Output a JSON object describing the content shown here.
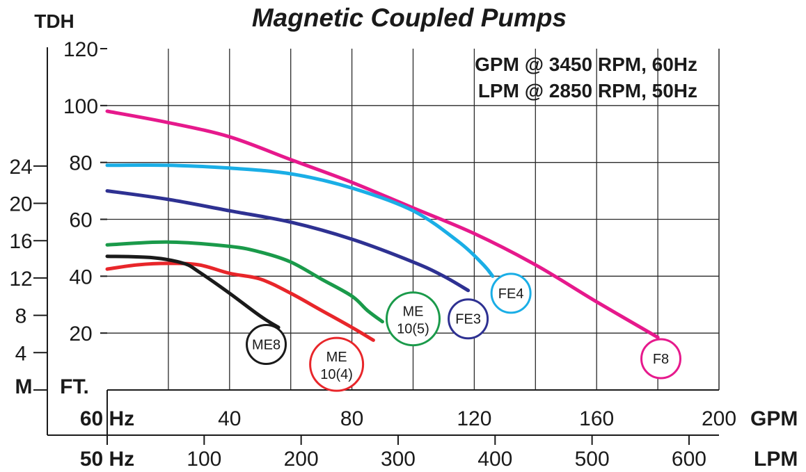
{
  "chart_data": {
    "type": "line",
    "title": "Magnetic Coupled Pumps",
    "subtitle_lines": [
      "GPM @ 3450 RPM, 60Hz",
      "LPM @ 2850 RPM, 50Hz"
    ],
    "y_axis_label": "TDH",
    "y_left_unit": "M",
    "y_right_unit": "FT.",
    "x_primary_label": "60 Hz",
    "x_primary_unit": "GPM",
    "x_secondary_label": "50 Hz",
    "x_secondary_unit": "LPM",
    "xlim": [
      0,
      200
    ],
    "ylim": [
      0,
      120
    ],
    "x_ticks": [
      40,
      80,
      120,
      160,
      200
    ],
    "x_grid": [
      20,
      40,
      60,
      80,
      100,
      120,
      140,
      160,
      180,
      200
    ],
    "y_ticks_ft": [
      20,
      40,
      60,
      80,
      100,
      120
    ],
    "y_grid_ft": [
      20,
      40,
      60,
      80,
      100
    ],
    "y_ticks_m": [
      4,
      8,
      12,
      16,
      20,
      24
    ],
    "x_ticks_lpm": [
      100,
      200,
      300,
      400,
      500,
      600
    ],
    "grid": true,
    "series": [
      {
        "name": "F8",
        "color": "#e6198c",
        "points": [
          [
            0,
            98
          ],
          [
            20,
            94
          ],
          [
            40,
            89
          ],
          [
            60,
            81
          ],
          [
            80,
            73
          ],
          [
            100,
            64
          ],
          [
            120,
            55
          ],
          [
            140,
            44
          ],
          [
            160,
            31
          ],
          [
            180,
            18.5
          ]
        ],
        "label_at": [
          181,
          11
        ]
      },
      {
        "name": "FE4",
        "color": "#1aaee6",
        "points": [
          [
            0,
            79
          ],
          [
            20,
            79
          ],
          [
            40,
            78
          ],
          [
            60,
            76
          ],
          [
            80,
            71
          ],
          [
            100,
            63
          ],
          [
            115,
            52
          ],
          [
            123,
            44
          ],
          [
            126,
            40
          ]
        ],
        "label_at": [
          132,
          34
        ]
      },
      {
        "name": "FE3",
        "color": "#2e3192",
        "points": [
          [
            0,
            70
          ],
          [
            20,
            67
          ],
          [
            40,
            63
          ],
          [
            60,
            59
          ],
          [
            80,
            53
          ],
          [
            100,
            45
          ],
          [
            110,
            40
          ],
          [
            118,
            35
          ]
        ],
        "label_at": [
          118,
          25
        ]
      },
      {
        "name": "ME 10(5)",
        "color": "#1a9a4a",
        "points": [
          [
            0,
            51
          ],
          [
            20,
            52
          ],
          [
            40,
            50.5
          ],
          [
            50,
            48.5
          ],
          [
            60,
            45
          ],
          [
            70,
            39
          ],
          [
            80,
            33
          ],
          [
            85,
            28
          ],
          [
            90,
            24
          ]
        ],
        "label_at": [
          100,
          25
        ]
      },
      {
        "name": "ME 10(4)",
        "color": "#e8262a",
        "points": [
          [
            0,
            42.5
          ],
          [
            10,
            44
          ],
          [
            20,
            44.5
          ],
          [
            30,
            44
          ],
          [
            40,
            41
          ],
          [
            50,
            39
          ],
          [
            60,
            34
          ],
          [
            70,
            28
          ],
          [
            80,
            22
          ],
          [
            87,
            17.5
          ]
        ],
        "label_at": [
          75,
          9
        ]
      },
      {
        "name": "ME8",
        "color": "#1a1a1a",
        "points": [
          [
            0,
            47
          ],
          [
            15,
            46.5
          ],
          [
            25,
            44.5
          ],
          [
            30,
            41.5
          ],
          [
            40,
            34
          ],
          [
            50,
            26
          ],
          [
            56,
            22
          ]
        ],
        "label_at": [
          52,
          16
        ]
      }
    ]
  }
}
